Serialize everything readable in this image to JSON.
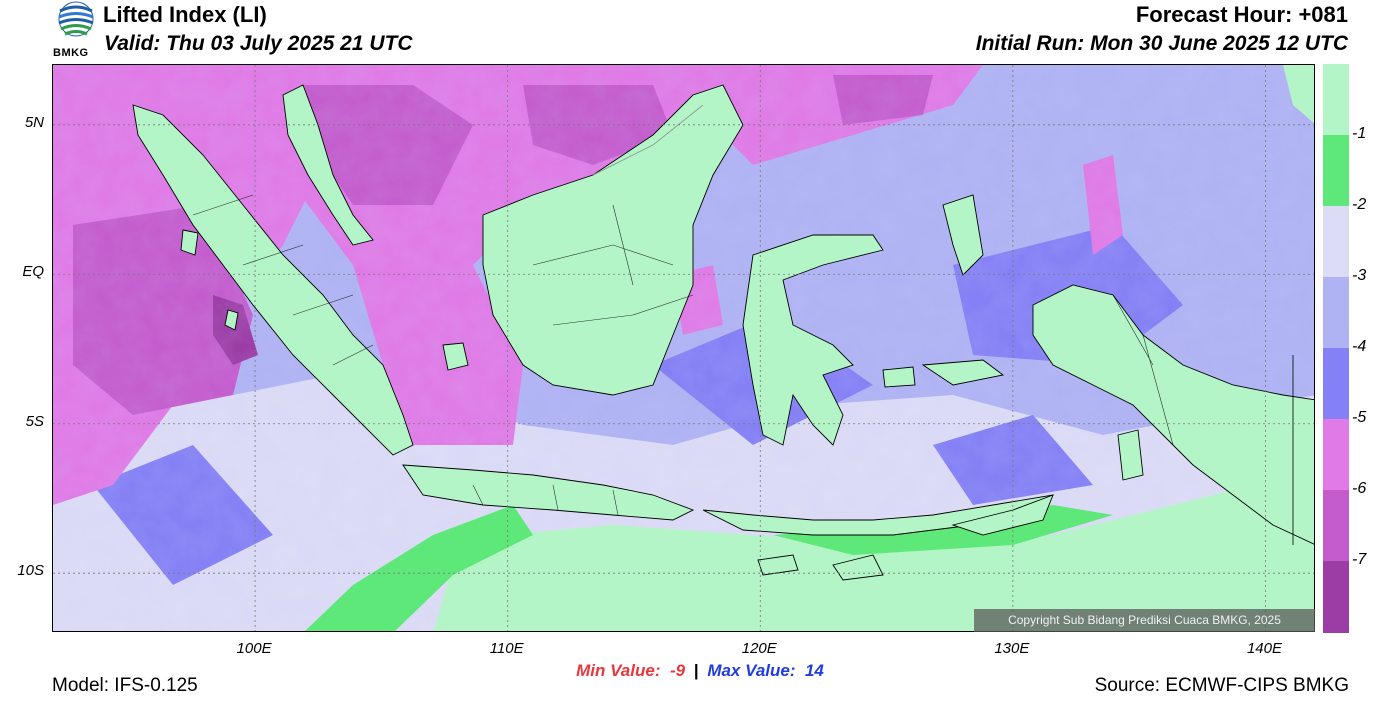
{
  "header": {
    "title": "Lifted Index (LI)",
    "valid": "Valid: Thu 03 July 2025 21 UTC",
    "forecast_hour": "Forecast Hour: +081",
    "initial_run": "Initial Run: Mon 30 June 2025 12 UTC",
    "logo_text": "BMKG"
  },
  "map": {
    "lat_labels": [
      "5N",
      "EQ",
      "5S",
      "10S"
    ],
    "lon_labels": [
      "100E",
      "110E",
      "120E",
      "130E",
      "140E"
    ],
    "lat_values": [
      5,
      0,
      -5,
      -10
    ],
    "lon_values": [
      100,
      110,
      120,
      130,
      140
    ],
    "lon_range": [
      92,
      142
    ],
    "lat_range": [
      -12,
      7
    ],
    "copyright": "Copyright Sub Bidang Prediksi Cuaca BMKG, 2025"
  },
  "colorbar": {
    "labels": [
      "-1",
      "-2",
      "-3",
      "-4",
      "-5",
      "-6",
      "-7"
    ],
    "colors": [
      "#b4f5c8",
      "#5fe87a",
      "#dcdcf6",
      "#b0b3f3",
      "#8480f5",
      "#e07ae6",
      "#c45ccd",
      "#9c3ca5"
    ]
  },
  "stats": {
    "min_label": "Min Value:",
    "min_value": "-9",
    "separator": "|",
    "max_label": "Max Value:",
    "max_value": "14"
  },
  "footer": {
    "model": "Model: IFS-0.125",
    "source": "Source: ECMWF-CIPS BMKG"
  }
}
